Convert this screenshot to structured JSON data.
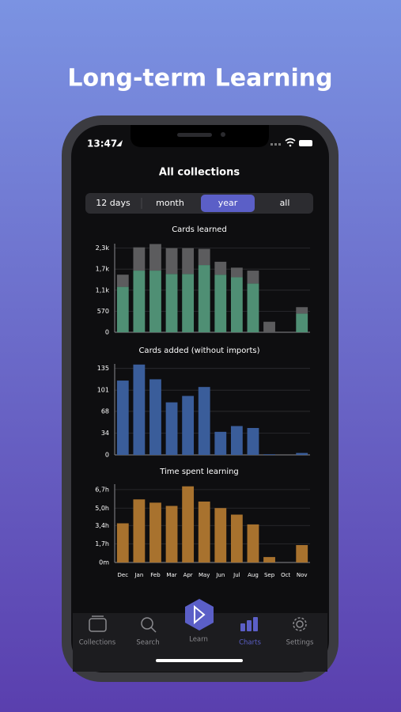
{
  "header": {
    "title": "Long-term Learning"
  },
  "status": {
    "time": "13:47"
  },
  "screen_title": "All collections",
  "tabs": {
    "items": [
      "12 days",
      "month",
      "year",
      "all"
    ],
    "selected": 2
  },
  "chart_data": [
    {
      "type": "bar",
      "stacked": true,
      "title": "Cards learned",
      "grid": true,
      "series": [
        {
          "color": "#4f8f74",
          "values": [
            1230,
            1670,
            1670,
            1580,
            1580,
            1820,
            1560,
            1490,
            1320,
            0,
            0,
            505
          ]
        },
        {
          "color": "#5c5c5e",
          "values": [
            330,
            630,
            720,
            700,
            700,
            440,
            350,
            260,
            350,
            285,
            0,
            175
          ]
        }
      ],
      "ylim": [
        0,
        2400
      ],
      "yticks": [
        0,
        570,
        {
          "value": 1140,
          "label": "1,1k"
        },
        {
          "value": 1710,
          "label": "1,7k"
        },
        {
          "value": 2280,
          "label": "2,3k"
        }
      ]
    },
    {
      "type": "bar",
      "title": "Cards added (without imports)",
      "grid": true,
      "color": "#3a5d9a",
      "values": [
        116,
        141,
        118,
        82,
        92,
        106,
        36,
        45,
        42,
        1,
        0,
        3
      ],
      "ylim": [
        0,
        142
      ],
      "yticks": [
        0,
        34,
        68,
        101,
        135
      ]
    },
    {
      "type": "bar",
      "title": "Time spent learning",
      "grid": true,
      "color": "#a8722e",
      "categories": [
        "Dec",
        "Jan",
        "Feb",
        "Mar",
        "Apr",
        "May",
        "Jun",
        "Jul",
        "Aug",
        "Sep",
        "Oct",
        "Nov"
      ],
      "values": [
        3.6,
        5.8,
        5.5,
        5.2,
        7.0,
        5.6,
        5.0,
        4.4,
        3.5,
        0.5,
        0,
        1.6
      ],
      "ylim": [
        0,
        7.2
      ],
      "yticks": [
        {
          "value": 0,
          "label": "0m"
        },
        {
          "value": 1.7,
          "label": "1,7h"
        },
        {
          "value": 3.4,
          "label": "3,4h"
        },
        {
          "value": 5.0,
          "label": "5,0h"
        },
        {
          "value": 6.7,
          "label": "6,7h"
        }
      ]
    }
  ],
  "nav": {
    "items": [
      "Collections",
      "Search",
      "Learn",
      "Charts",
      "Settings"
    ],
    "active": 3
  }
}
